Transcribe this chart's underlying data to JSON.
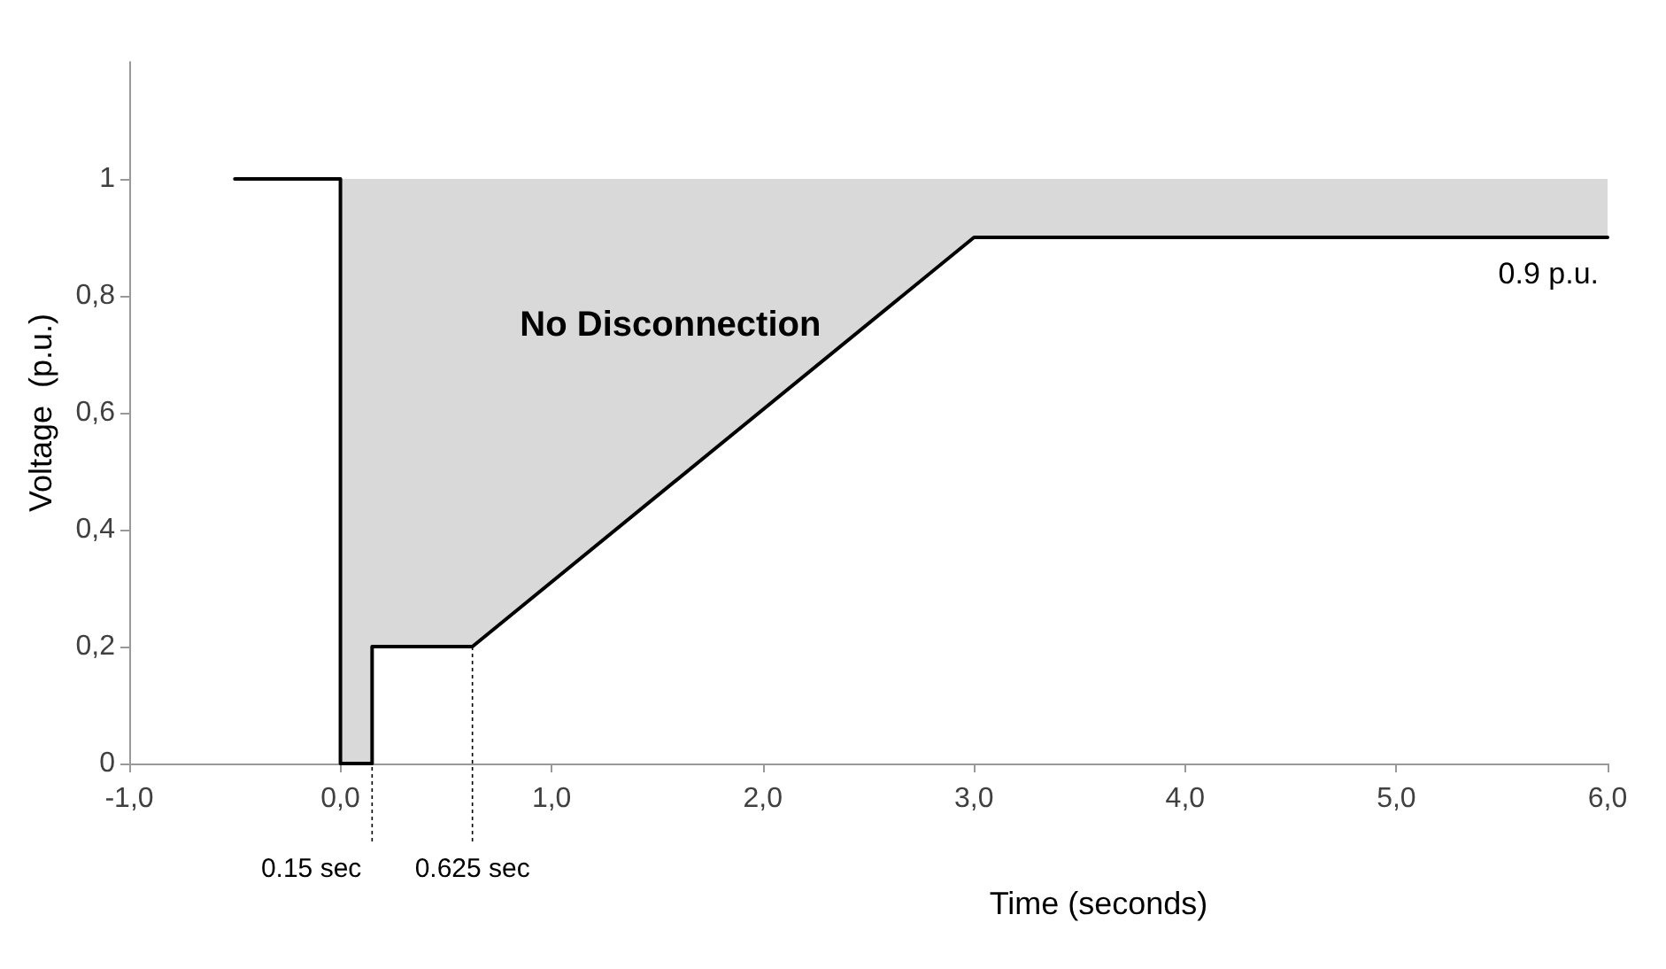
{
  "chart_data": {
    "type": "line",
    "xlabel": "Time (seconds)",
    "ylabel": "Voltage  (p.u.)",
    "xlim": [
      -1,
      6
    ],
    "xticks": [
      {
        "value": -1,
        "label": "-1,0"
      },
      {
        "value": 0,
        "label": "0,0"
      },
      {
        "value": 1,
        "label": "1,0"
      },
      {
        "value": 2,
        "label": "2,0"
      },
      {
        "value": 3,
        "label": "3,0"
      },
      {
        "value": 4,
        "label": "4,0"
      },
      {
        "value": 5,
        "label": "5,0"
      },
      {
        "value": 6,
        "label": "6,0"
      }
    ],
    "ylim": [
      0,
      1.2
    ],
    "yticks": [
      0,
      {
        "value": 0.2,
        "label": "0,2"
      },
      {
        "value": 0.4,
        "label": "0,4"
      },
      {
        "value": 0.6,
        "label": "0,6"
      },
      {
        "value": 0.8,
        "label": "0,8"
      },
      1
    ],
    "series": [
      {
        "color": "#000000",
        "x": [
          -0.5,
          0,
          0,
          0.15,
          0.15,
          0.625,
          3,
          6
        ],
        "values": [
          1,
          1,
          0,
          0,
          0.2,
          0.2,
          0.9,
          0.9
        ],
        "lower": [
          null,
          null,
          0,
          0,
          0.2,
          0.2,
          0.9,
          0.9
        ],
        "upper": [
          null,
          null,
          1,
          1,
          1,
          1,
          1,
          1
        ]
      }
    ],
    "annotations": [
      "No Disconnection",
      {
        "text": "0.9 p.u.",
        "x": 6,
        "y": 0.9
      },
      {
        "text": "0.15 sec",
        "x": 0.15,
        "y": 0.2
      },
      {
        "text": "0.625 sec",
        "x": 0.625,
        "y": 0.2
      }
    ],
    "grid": false,
    "marker": "none",
    "line_style": "solid"
  }
}
